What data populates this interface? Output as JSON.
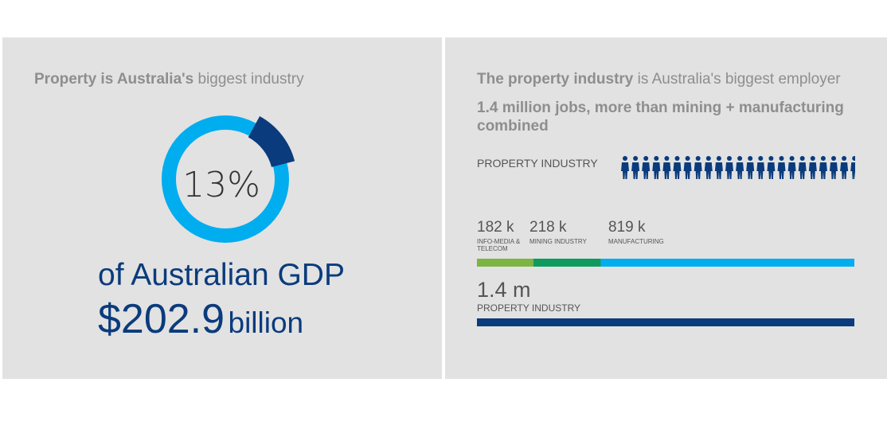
{
  "left_panel": {
    "headline_bold": "Property is Australia's",
    "headline_rest": " biggest industry",
    "donut_label": "13%",
    "gdp_text": "of Australian GDP",
    "gdp_amount": "$202.9",
    "gdp_unit": "billion"
  },
  "right_panel": {
    "headline_bold": "The property industry",
    "headline_rest": " is Australia's biggest employer",
    "subheadline": "1.4 million jobs, more than mining + manufacturing combined",
    "property_label": "PROPERTY INDUSTRY",
    "property_value": "1.4 m",
    "property_bar_label": "PROPERTY INDUSTRY"
  },
  "colors": {
    "donut_ring": "#00adef",
    "donut_highlight": "#0a3b7c",
    "info_media": "#7db544",
    "mining": "#0f9b5f",
    "manufacturing": "#00adef",
    "property": "#0a3b7c"
  },
  "chart_data": [
    {
      "type": "pie",
      "values": [
        13,
        87
      ],
      "labels": [
        "13%",
        ""
      ]
    },
    {
      "type": "bar",
      "categories": [
        "INFO-MEDIA & TELECOM",
        "MINING INDUSTRY",
        "MANUFACTURING",
        "PROPERTY INDUSTRY"
      ],
      "values": [
        182,
        218,
        819,
        1400
      ],
      "value_labels": [
        "182 k",
        "218 k",
        "819 k",
        "1.4 m"
      ]
    }
  ]
}
